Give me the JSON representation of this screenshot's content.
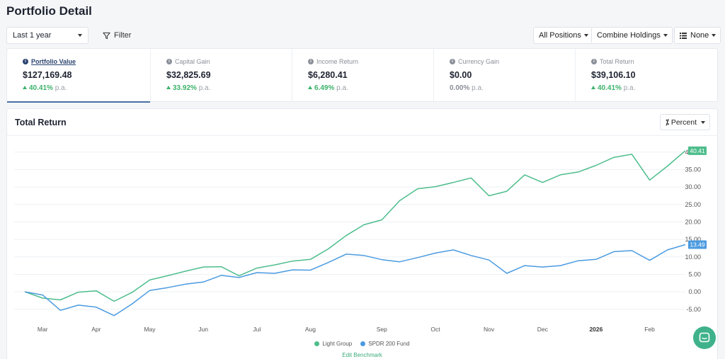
{
  "page": {
    "title": "Portfolio Detail"
  },
  "toolbar": {
    "period": "Last 1 year",
    "filter_label": "Filter",
    "positions_label": "All Positions",
    "combine_label": "Combine Holdings",
    "grouping_label": "None"
  },
  "stats": [
    {
      "label": "Portfolio Value",
      "value": "$127,169.48",
      "change": "40.41%",
      "suffix": "p.a.",
      "trend": "up"
    },
    {
      "label": "Capital Gain",
      "value": "$32,825.69",
      "change": "33.92%",
      "suffix": "p.a.",
      "trend": "up"
    },
    {
      "label": "Income Return",
      "value": "$6,280.41",
      "change": "6.49%",
      "suffix": "p.a.",
      "trend": "up"
    },
    {
      "label": "Currency Gain",
      "value": "$0.00",
      "change": "0.00%",
      "suffix": "p.a.",
      "trend": "flat"
    },
    {
      "label": "Total Return",
      "value": "$39,106.10",
      "change": "40.41%",
      "suffix": "p.a.",
      "trend": "up"
    }
  ],
  "chart": {
    "title": "Total Return",
    "mode_label": "Percent",
    "edit_benchmark": "Edit Benchmark"
  },
  "chart_data": {
    "type": "line",
    "y_ticks": [
      "40.00",
      "35.00",
      "30.00",
      "25.00",
      "20.00",
      "15.00",
      "10.00",
      "5.00",
      "0.00",
      "-5.00"
    ],
    "ylim": [
      -9.5,
      43
    ],
    "x_ticks": [
      {
        "label": "Mar",
        "x": 1
      },
      {
        "label": "Apr",
        "x": 4
      },
      {
        "label": "May",
        "x": 7
      },
      {
        "label": "Jun",
        "x": 10
      },
      {
        "label": "Jul",
        "x": 13
      },
      {
        "label": "Aug",
        "x": 16
      },
      {
        "label": "Sep",
        "x": 20
      },
      {
        "label": "Oct",
        "x": 23
      },
      {
        "label": "Nov",
        "x": 26
      },
      {
        "label": "Dec",
        "x": 29
      },
      {
        "label": "2026",
        "x": 32
      },
      {
        "label": "Feb",
        "x": 35
      }
    ],
    "x_range": [
      0,
      37
    ],
    "series": [
      {
        "name": "Light Group",
        "color": "#4dbd8c",
        "end_label": "40.41",
        "points": [
          [
            0,
            0
          ],
          [
            1,
            -1.8
          ],
          [
            2,
            -2.3
          ],
          [
            3,
            -0.1
          ],
          [
            4,
            0.3
          ],
          [
            5,
            -2.7
          ],
          [
            6,
            -0.2
          ],
          [
            7,
            3.4
          ],
          [
            8,
            4.6
          ],
          [
            9,
            5.9
          ],
          [
            10,
            7.1
          ],
          [
            11,
            7.2
          ],
          [
            12,
            4.6
          ],
          [
            13,
            6.8
          ],
          [
            14,
            7.7
          ],
          [
            15,
            8.8
          ],
          [
            16,
            9.3
          ],
          [
            17,
            12.3
          ],
          [
            18,
            16.1
          ],
          [
            19,
            19.2
          ],
          [
            20,
            20.6
          ],
          [
            21,
            26.1
          ],
          [
            22,
            29.5
          ],
          [
            23,
            30.1
          ],
          [
            24,
            31.3
          ],
          [
            25,
            32.6
          ],
          [
            26,
            27.5
          ],
          [
            27,
            28.8
          ],
          [
            28,
            33.5
          ],
          [
            29,
            31.3
          ],
          [
            30,
            33.5
          ],
          [
            31,
            34.3
          ],
          [
            32,
            36.2
          ],
          [
            33,
            38.5
          ],
          [
            34,
            39.4
          ],
          [
            35,
            32.0
          ],
          [
            36,
            36.0
          ],
          [
            37,
            40.4
          ]
        ]
      },
      {
        "name": "SPDR 200 Fund",
        "color": "#4b9be0",
        "end_label": "13.49",
        "points": [
          [
            0,
            0
          ],
          [
            1,
            -0.9
          ],
          [
            2,
            -5.3
          ],
          [
            3,
            -3.8
          ],
          [
            4,
            -4.4
          ],
          [
            5,
            -6.8
          ],
          [
            6,
            -3.5
          ],
          [
            7,
            0.4
          ],
          [
            8,
            1.2
          ],
          [
            9,
            2.2
          ],
          [
            10,
            2.8
          ],
          [
            11,
            4.7
          ],
          [
            12,
            4.1
          ],
          [
            13,
            5.5
          ],
          [
            14,
            5.3
          ],
          [
            15,
            6.3
          ],
          [
            16,
            6.2
          ],
          [
            17,
            8.4
          ],
          [
            18,
            10.8
          ],
          [
            19,
            10.4
          ],
          [
            20,
            9.2
          ],
          [
            21,
            8.6
          ],
          [
            22,
            9.8
          ],
          [
            23,
            11.1
          ],
          [
            24,
            12.0
          ],
          [
            25,
            10.4
          ],
          [
            26,
            9.1
          ],
          [
            27,
            5.3
          ],
          [
            28,
            7.5
          ],
          [
            29,
            7.1
          ],
          [
            30,
            7.5
          ],
          [
            31,
            8.9
          ],
          [
            32,
            9.3
          ],
          [
            33,
            11.5
          ],
          [
            34,
            11.8
          ],
          [
            35,
            9.0
          ],
          [
            36,
            12.0
          ],
          [
            37,
            13.5
          ]
        ]
      }
    ]
  }
}
